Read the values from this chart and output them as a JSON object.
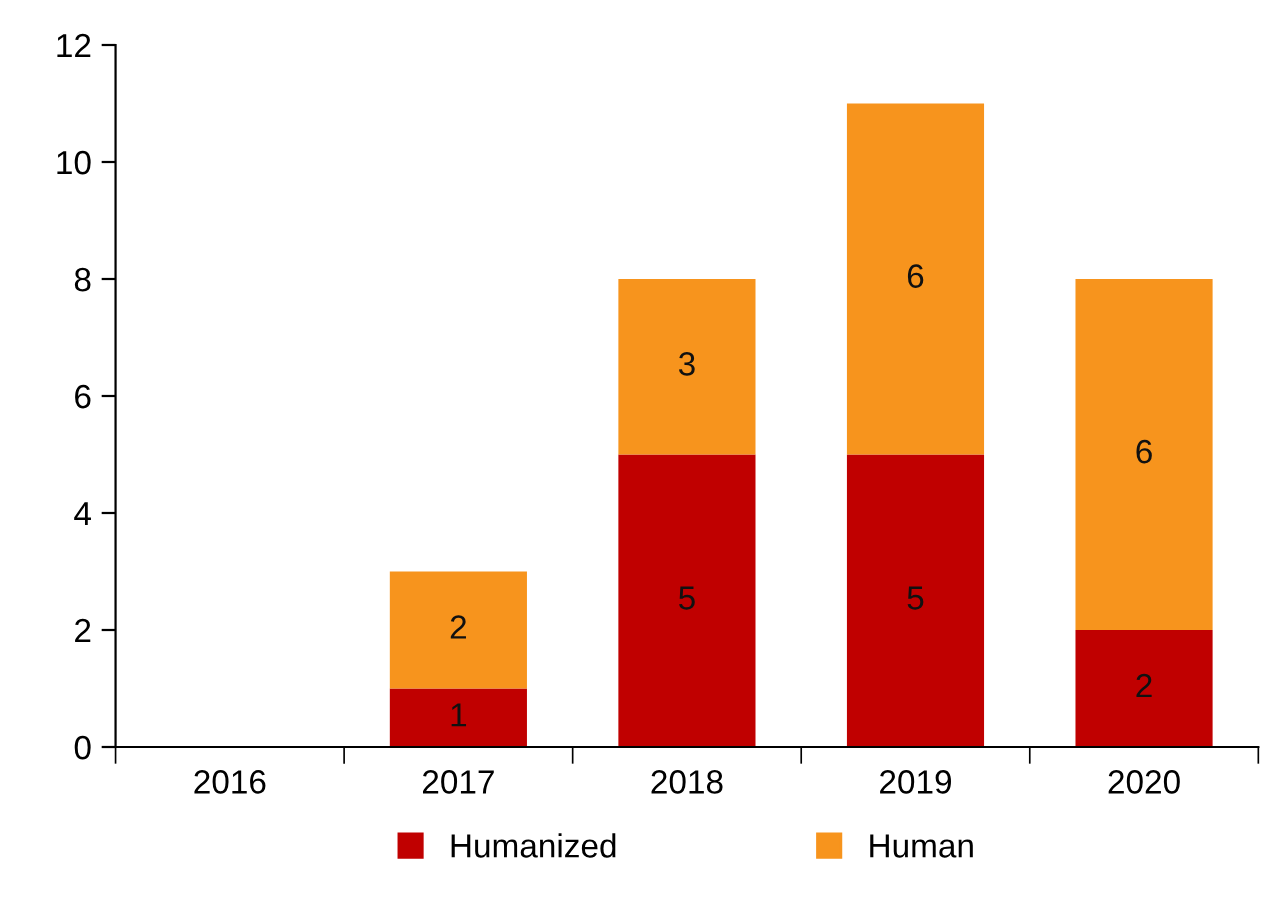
{
  "chart_data": {
    "type": "bar",
    "stacked": true,
    "categories": [
      "2016",
      "2017",
      "2018",
      "2019",
      "2020"
    ],
    "series": [
      {
        "name": "Humanized",
        "color": "#c00000",
        "values": [
          null,
          1,
          5,
          5,
          2
        ]
      },
      {
        "name": "Human",
        "color": "#f7941d",
        "values": [
          null,
          2,
          3,
          6,
          6
        ]
      }
    ],
    "ylim": [
      0,
      12
    ],
    "yticks": [
      0,
      2,
      4,
      6,
      8,
      10,
      12
    ],
    "grid": false,
    "legend": "bottom",
    "data_labels": true
  }
}
